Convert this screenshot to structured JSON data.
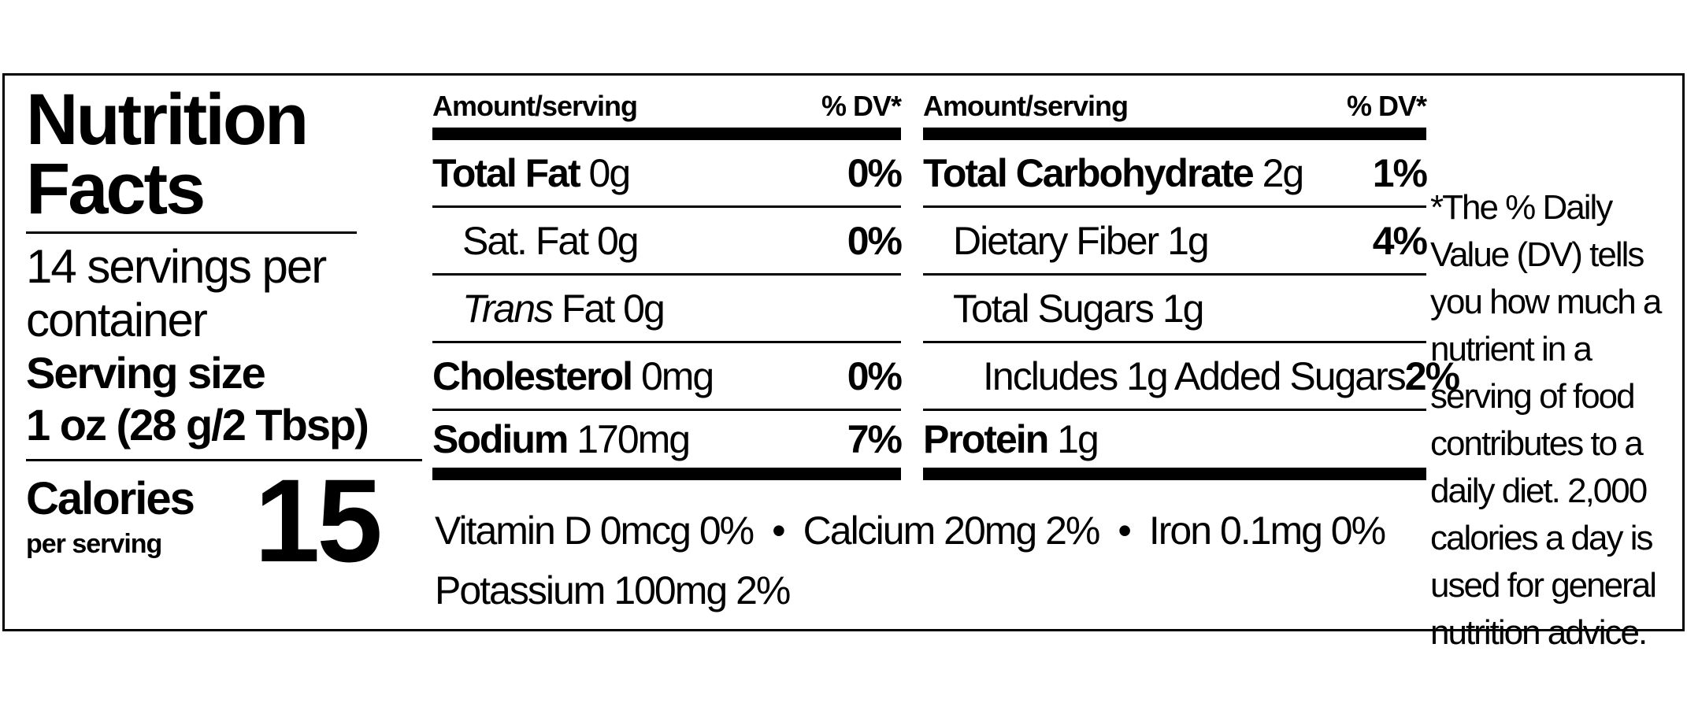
{
  "header": {
    "title": "Nutrition Facts",
    "servings": "14 servings per container",
    "serving_size_label": "Serving size",
    "serving_size": "1 oz (28 g/2 Tbsp)",
    "calories_label": "Calories",
    "calories_sub": "per serving",
    "calories": 15
  },
  "columns": [
    {
      "amount_header": "Amount/serving",
      "dv_header": "% DV*",
      "rows": [
        {
          "name": "Total Fat",
          "amount": "0g",
          "dv": "0%",
          "bold": true,
          "indent": 0
        },
        {
          "name": "Sat. Fat",
          "amount": "0g",
          "dv": "0%",
          "bold": false,
          "indent": 1
        },
        {
          "name_italic": "Trans",
          "name": "Fat",
          "amount": "0g",
          "bold": false,
          "indent": 1
        },
        {
          "name": "Cholesterol",
          "amount": "0mg",
          "dv": "0%",
          "bold": true,
          "indent": 0
        },
        {
          "name": "Sodium",
          "amount": "170mg",
          "dv": "7%",
          "bold": true,
          "indent": 0
        }
      ]
    },
    {
      "amount_header": "Amount/serving",
      "dv_header": "% DV*",
      "rows": [
        {
          "name": "Total Carbohydrate",
          "amount": "2g",
          "dv": "1%",
          "bold": true,
          "indent": 0
        },
        {
          "name": "Dietary Fiber",
          "amount": "1g",
          "dv": "4%",
          "bold": false,
          "indent": 1
        },
        {
          "name": "Total Sugars",
          "amount": "1g",
          "bold": false,
          "indent": 1
        },
        {
          "name": "Includes 1g Added Sugars",
          "dv": "2%",
          "bold": false,
          "indent": 2
        },
        {
          "name": "Protein",
          "amount": "1g",
          "bold": true,
          "indent": 0
        }
      ]
    }
  ],
  "vitamins": [
    [
      "Vitamin D 0mcg 0%",
      "Calcium 20mg 2%",
      "Iron 0.1mg 0%"
    ],
    [
      "Potassium 100mg 2%"
    ]
  ],
  "footnote": "*The % Daily Value (DV) tells you how much a nutrient in a serving of food contributes to a daily diet. 2,000 calories a day is used for general nutrition advice."
}
